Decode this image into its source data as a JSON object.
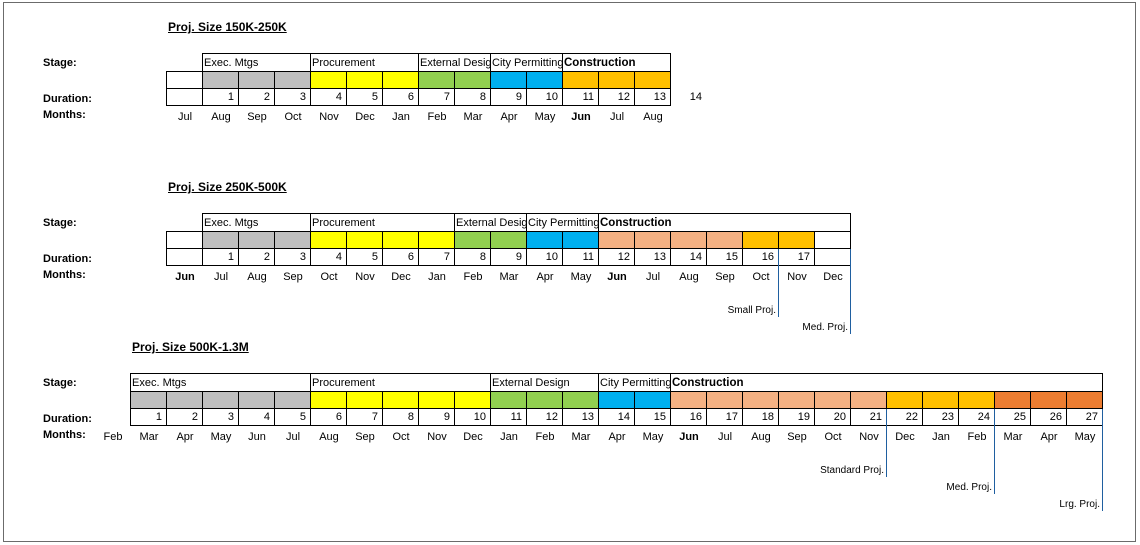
{
  "labels": {
    "stage": "Stage:",
    "duration": "Duration:",
    "months": "Months:"
  },
  "colors": {
    "gray": "#bfbfbf",
    "yellow": "#ffff00",
    "green": "#92d050",
    "blue": "#00b0f0",
    "orange": "#ffc000",
    "peach": "#f4b183",
    "darkorange": "#ed7d31",
    "white": "#ffffff",
    "marker_line": "#1f5fa0"
  },
  "charts": [
    {
      "title": "Proj. Size 150K-250K",
      "durations": [
        "1",
        "2",
        "3",
        "4",
        "5",
        "6",
        "7",
        "8",
        "9",
        "10",
        "11",
        "12",
        "13",
        "14"
      ],
      "cell_colors": [
        "gray",
        "gray",
        "gray",
        "yellow",
        "yellow",
        "yellow",
        "green",
        "green",
        "blue",
        "blue",
        "orange",
        "orange",
        "orange"
      ],
      "months": [
        "Jul",
        "Aug",
        "Sep",
        "Oct",
        "Nov",
        "Dec",
        "Jan",
        "Feb",
        "Mar",
        "Apr",
        "May",
        "Jun",
        "Jul",
        "Aug"
      ],
      "bold_months": [
        11
      ],
      "stages": [
        {
          "name": "Exec. Mtgs",
          "start": 1,
          "span": 3,
          "bold": false
        },
        {
          "name": "Procurement",
          "start": 4,
          "span": 3,
          "bold": false
        },
        {
          "name": "External Design",
          "start": 7,
          "span": 2,
          "bold": false
        },
        {
          "name": "City Permitting",
          "start": 9,
          "span": 2,
          "bold": false
        },
        {
          "name": "Construction",
          "start": 11,
          "span": 3,
          "bold": true
        }
      ],
      "markers": []
    },
    {
      "title": "Proj. Size 250K-500K",
      "durations": [
        "1",
        "2",
        "3",
        "4",
        "5",
        "6",
        "7",
        "8",
        "9",
        "10",
        "11",
        "12",
        "13",
        "14",
        "15",
        "16",
        "17"
      ],
      "cell_colors": [
        "gray",
        "gray",
        "gray",
        "yellow",
        "yellow",
        "yellow",
        "yellow",
        "green",
        "green",
        "blue",
        "blue",
        "peach",
        "peach",
        "peach",
        "peach",
        "orange",
        "orange",
        "white"
      ],
      "months": [
        "Jun",
        "Jul",
        "Aug",
        "Sep",
        "Oct",
        "Nov",
        "Dec",
        "Jan",
        "Feb",
        "Mar",
        "Apr",
        "May",
        "Jun",
        "Jul",
        "Aug",
        "Sep",
        "Oct",
        "Nov",
        "Dec"
      ],
      "bold_months": [
        0,
        12
      ],
      "stages": [
        {
          "name": "Exec. Mtgs",
          "start": 1,
          "span": 3,
          "bold": false
        },
        {
          "name": "Procurement",
          "start": 4,
          "span": 4,
          "bold": false
        },
        {
          "name": "External Design",
          "start": 8,
          "span": 2,
          "bold": false
        },
        {
          "name": "City Permitting",
          "start": 10,
          "span": 2,
          "bold": false
        },
        {
          "name": "Construction",
          "start": 12,
          "span": 6,
          "bold": true
        }
      ],
      "markers": [
        {
          "label": "Small Proj.",
          "boundary": 16,
          "level": 0
        },
        {
          "label": "Med. Proj.",
          "boundary": 18,
          "level": 1
        }
      ]
    },
    {
      "title": "Proj. Size 500K-1.3M",
      "durations": [
        "1",
        "2",
        "3",
        "4",
        "5",
        "6",
        "7",
        "8",
        "9",
        "10",
        "11",
        "12",
        "13",
        "14",
        "15",
        "16",
        "17",
        "18",
        "19",
        "20",
        "21",
        "22",
        "23",
        "24",
        "25",
        "26",
        "27"
      ],
      "cell_colors": [
        "gray",
        "gray",
        "gray",
        "gray",
        "gray",
        "yellow",
        "yellow",
        "yellow",
        "yellow",
        "yellow",
        "green",
        "green",
        "green",
        "blue",
        "blue",
        "peach",
        "peach",
        "peach",
        "peach",
        "peach",
        "peach",
        "orange",
        "orange",
        "orange",
        "darkorange",
        "darkorange",
        "darkorange"
      ],
      "months": [
        "Feb",
        "Mar",
        "Apr",
        "May",
        "Jun",
        "Jul",
        "Aug",
        "Sep",
        "Oct",
        "Nov",
        "Dec",
        "Jan",
        "Feb",
        "Mar",
        "Apr",
        "May",
        "Jun",
        "Jul",
        "Aug",
        "Sep",
        "Oct",
        "Nov",
        "Dec",
        "Jan",
        "Feb",
        "Mar",
        "Apr",
        "May"
      ],
      "bold_months": [
        16
      ],
      "stages": [
        {
          "name": "Exec. Mtgs",
          "start": 1,
          "span": 5,
          "bold": false
        },
        {
          "name": "Procurement",
          "start": 6,
          "span": 5,
          "bold": false
        },
        {
          "name": "External Design",
          "start": 11,
          "span": 3,
          "bold": false
        },
        {
          "name": "City Permitting",
          "start": 14,
          "span": 2,
          "bold": false
        },
        {
          "name": "Construction",
          "start": 16,
          "span": 12,
          "bold": true
        }
      ],
      "markers": [
        {
          "label": "Standard Proj.",
          "boundary": 21,
          "level": 0
        },
        {
          "label": "Med. Proj.",
          "boundary": 24,
          "level": 1
        },
        {
          "label": "Lrg. Proj.",
          "boundary": 27,
          "level": 2
        }
      ]
    }
  ]
}
